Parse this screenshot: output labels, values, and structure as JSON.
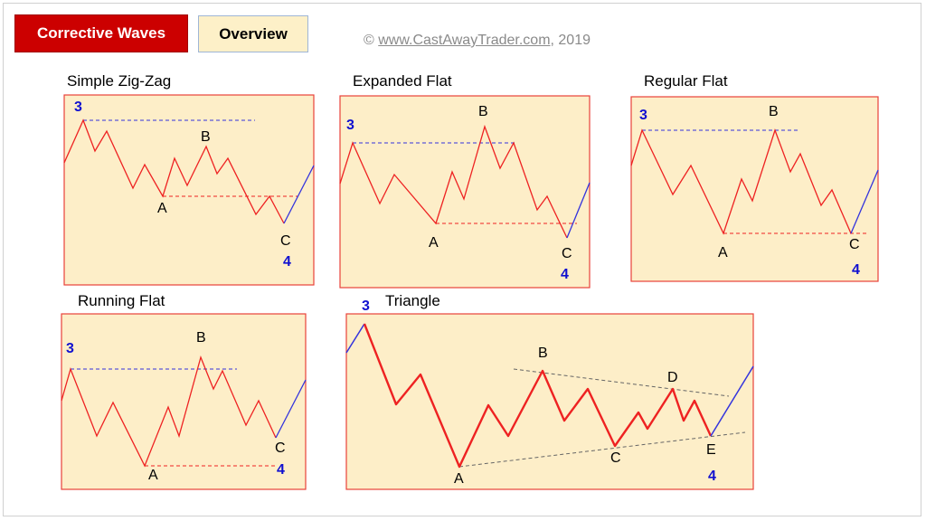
{
  "header": {
    "tab_active": "Corrective Waves",
    "tab_overview": "Overview",
    "copyright_prefix": "© ",
    "copyright_link": "www.CastAwayTrader.com",
    "copyright_suffix": ", 2019"
  },
  "colors": {
    "panel_bg": "#fdeec8",
    "border": "#e8413a",
    "red_line": "#ee2222",
    "blue_line": "#3333dd",
    "label_blue": "#1010d0",
    "gray_dash": "#666666"
  },
  "panels": [
    {
      "title": "Simple Zig-Zag",
      "labels": [
        "3",
        "B",
        "A",
        "C",
        "4"
      ]
    },
    {
      "title": "Expanded Flat",
      "labels": [
        "3",
        "B",
        "A",
        "C",
        "4"
      ]
    },
    {
      "title": "Regular Flat",
      "labels": [
        "3",
        "B",
        "A",
        "C",
        "4"
      ]
    },
    {
      "title": "Running Flat",
      "labels": [
        "3",
        "B",
        "A",
        "C",
        "4"
      ]
    },
    {
      "title": "Triangle",
      "labels": [
        "3",
        "B",
        "D",
        "A",
        "C",
        "E",
        "4"
      ]
    }
  ]
}
